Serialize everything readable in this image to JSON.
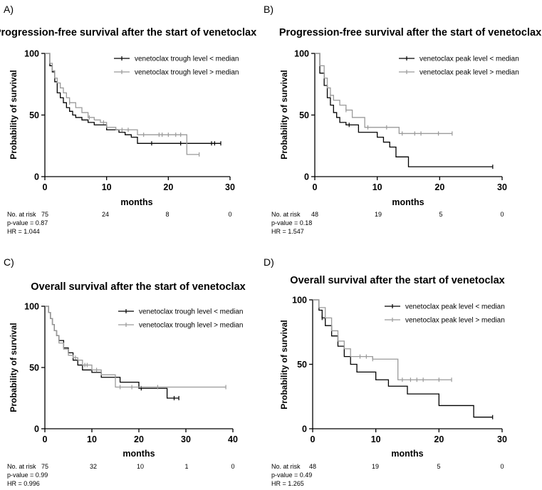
{
  "figure": {
    "colors": {
      "low": "#000000",
      "high": "#9a9a9a"
    }
  },
  "chart_data": [
    {
      "panel": "A)",
      "type": "line",
      "title": "Progression-free survival after the start of venetoclax",
      "xlabel": "months",
      "ylabel": "Probability of survival",
      "xlim": [
        0,
        30
      ],
      "ylim": [
        0,
        100
      ],
      "x_ticks": [
        "0",
        "10",
        "20",
        "30"
      ],
      "y_ticks": [
        "0",
        "50",
        "100"
      ],
      "legend": [
        "venetoclax trough level < median",
        "venetoclax trough level > median"
      ],
      "series": [
        {
          "name": "venetoclax trough level < median",
          "x": [
            0,
            0.8,
            1.2,
            1.6,
            2,
            2.5,
            3,
            3.5,
            4,
            4.5,
            5,
            6,
            7,
            8,
            10,
            12,
            13,
            14,
            15,
            28.5
          ],
          "y": [
            100,
            90,
            85,
            77,
            68,
            64,
            60,
            56,
            53,
            50,
            48,
            46,
            44,
            42,
            38,
            36,
            34,
            32,
            27,
            27
          ],
          "censored": [
            [
              17.3,
              27
            ],
            [
              22,
              27
            ],
            [
              27,
              27
            ],
            [
              27.5,
              27
            ],
            [
              28.5,
              27
            ]
          ]
        },
        {
          "name": "venetoclax trough level > median",
          "x": [
            0,
            0.8,
            1.2,
            1.6,
            2,
            2.5,
            3,
            3.5,
            4,
            5,
            6,
            7,
            8,
            9,
            10,
            11.5,
            15,
            23,
            25
          ],
          "y": [
            100,
            92,
            86,
            80,
            76,
            72,
            68,
            64,
            60,
            56,
            52,
            48,
            46,
            44,
            40,
            38,
            34,
            18,
            18
          ],
          "censored": [
            [
              4,
              60
            ],
            [
              7.2,
              48
            ],
            [
              9.5,
              44
            ],
            [
              12.5,
              38
            ],
            [
              13.5,
              38
            ],
            [
              16,
              34
            ],
            [
              18.5,
              34
            ],
            [
              19,
              34
            ],
            [
              20,
              34
            ],
            [
              21.2,
              34
            ],
            [
              22,
              34
            ],
            [
              25,
              18
            ]
          ]
        }
      ],
      "risk_table": {
        "label": "No. at risk",
        "values": [
          "75",
          "24",
          "8",
          "0"
        ]
      },
      "p_value": "p-value = 0.87",
      "hr": "HR = 1.044"
    },
    {
      "panel": "B)",
      "type": "line",
      "title": "Progression-free survival after the start of venetoclax",
      "xlabel": "months",
      "ylabel": "Probability of survival",
      "xlim": [
        0,
        30
      ],
      "ylim": [
        0,
        100
      ],
      "x_ticks": [
        "0",
        "10",
        "20",
        "30"
      ],
      "y_ticks": [
        "0",
        "50",
        "100"
      ],
      "legend": [
        "venetoclax peak level < median",
        "venetoclax peak level > median"
      ],
      "series": [
        {
          "name": "venetoclax peak level < median",
          "x": [
            0,
            0.8,
            1.5,
            2,
            2.5,
            3,
            3.5,
            4,
            5,
            7,
            10,
            11,
            12,
            13,
            15,
            28.5
          ],
          "y": [
            100,
            84,
            74,
            64,
            58,
            52,
            48,
            44,
            42,
            36,
            32,
            28,
            24,
            16,
            8,
            8
          ],
          "censored": [
            [
              5.5,
              42
            ],
            [
              28.5,
              8
            ]
          ]
        },
        {
          "name": "venetoclax peak level > median",
          "x": [
            0,
            0.8,
            1.5,
            2,
            2.5,
            3,
            4,
            5,
            6,
            8,
            13.5,
            22
          ],
          "y": [
            100,
            90,
            80,
            72,
            66,
            62,
            58,
            54,
            48,
            40,
            35,
            35
          ],
          "censored": [
            [
              2.5,
              66
            ],
            [
              5,
              54
            ],
            [
              8.5,
              40
            ],
            [
              11.5,
              40
            ],
            [
              14,
              35
            ],
            [
              16,
              35
            ],
            [
              17,
              35
            ],
            [
              19.8,
              35
            ],
            [
              22,
              35
            ]
          ]
        }
      ],
      "risk_table": {
        "label": "No. at risk",
        "values": [
          "48",
          "19",
          "5",
          "0"
        ]
      },
      "p_value": "p-value = 0.18",
      "hr": "HR = 1.547"
    },
    {
      "panel": "C)",
      "type": "line",
      "title": "Overall survival after the start of venetoclax",
      "xlabel": "months",
      "ylabel": "Probability of survival",
      "xlim": [
        0,
        40
      ],
      "ylim": [
        0,
        100
      ],
      "x_ticks": [
        "0",
        "10",
        "20",
        "30",
        "40"
      ],
      "y_ticks": [
        "0",
        "50",
        "100"
      ],
      "legend": [
        "venetoclax trough level < median",
        "venetoclax trough level > median"
      ],
      "series": [
        {
          "name": "venetoclax trough level < median",
          "x": [
            0,
            0.8,
            1.2,
            1.6,
            2,
            2.5,
            3,
            4,
            5,
            6,
            7,
            8,
            10,
            12,
            16,
            20,
            26,
            28.5
          ],
          "y": [
            100,
            95,
            90,
            85,
            80,
            76,
            72,
            66,
            62,
            56,
            52,
            48,
            46,
            42,
            38,
            33,
            25,
            25
          ],
          "censored": [
            [
              20.5,
              33
            ],
            [
              27.5,
              25
            ],
            [
              28.5,
              25
            ]
          ]
        },
        {
          "name": "venetoclax trough level > median",
          "x": [
            0,
            0.8,
            1.2,
            1.6,
            2,
            2.5,
            3,
            4,
            5,
            6,
            7,
            8,
            10,
            12,
            15,
            38.5
          ],
          "y": [
            100,
            95,
            90,
            85,
            80,
            76,
            70,
            65,
            60,
            58,
            56,
            52,
            48,
            44,
            34,
            34
          ],
          "censored": [
            [
              6.5,
              58
            ],
            [
              8.5,
              52
            ],
            [
              9,
              52
            ],
            [
              11,
              48
            ],
            [
              16,
              34
            ],
            [
              18.5,
              34
            ],
            [
              24,
              34
            ],
            [
              38.5,
              34
            ]
          ]
        }
      ],
      "risk_table": {
        "label": "No. at risk",
        "values": [
          "75",
          "32",
          "10",
          "1",
          "0"
        ]
      },
      "p_value": "p-value = 0.99",
      "hr": "HR = 0.996"
    },
    {
      "panel": "D)",
      "type": "line",
      "title": "Overall survival after the start of venetoclax",
      "xlabel": "months",
      "ylabel": "Probability of survival",
      "xlim": [
        0,
        30
      ],
      "ylim": [
        0,
        100
      ],
      "x_ticks": [
        "0",
        "10",
        "20",
        "30"
      ],
      "y_ticks": [
        "0",
        "50",
        "100"
      ],
      "legend": [
        "venetoclax peak level < median",
        "venetoclax peak level > median"
      ],
      "series": [
        {
          "name": "venetoclax peak level < median",
          "x": [
            0,
            1,
            1.5,
            2,
            3,
            4,
            5,
            6,
            7,
            10,
            12,
            15,
            20,
            25.5,
            28.5
          ],
          "y": [
            100,
            92,
            86,
            80,
            72,
            64,
            56,
            50,
            44,
            38,
            33,
            27,
            18,
            9,
            9
          ],
          "censored": [
            [
              1.5,
              86
            ],
            [
              28.5,
              9
            ]
          ]
        },
        {
          "name": "venetoclax peak level > median",
          "x": [
            0,
            1,
            2,
            3,
            4,
            5,
            6,
            9.5,
            13.5,
            22
          ],
          "y": [
            100,
            94,
            86,
            76,
            68,
            62,
            56,
            54,
            38,
            38
          ],
          "censored": [
            [
              7.5,
              56
            ],
            [
              8.5,
              56
            ],
            [
              9.5,
              54
            ],
            [
              14.2,
              38
            ],
            [
              15.5,
              38
            ],
            [
              16.5,
              38
            ],
            [
              17.5,
              38
            ],
            [
              20,
              38
            ],
            [
              22,
              38
            ]
          ]
        }
      ],
      "risk_table": {
        "label": "No. at risk",
        "values": [
          "48",
          "19",
          "5",
          "0"
        ]
      },
      "p_value": "p-value = 0.49",
      "hr": "HR = 1.265"
    }
  ]
}
